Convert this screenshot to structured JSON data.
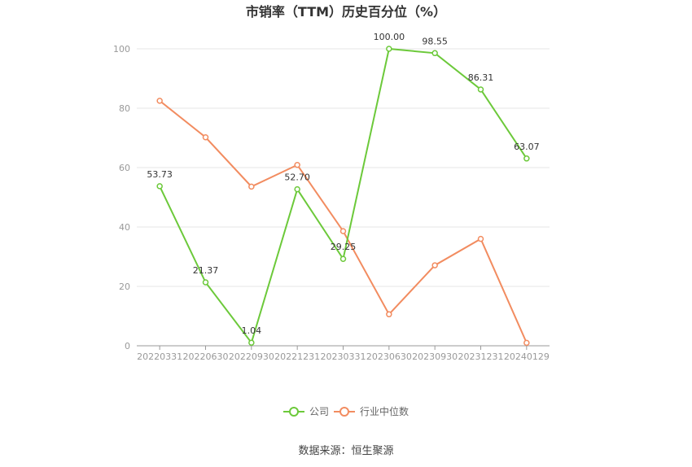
{
  "chart_data": {
    "type": "line",
    "title": "市销率（TTM）历史百分位（%）",
    "xlabel": "",
    "ylabel": "",
    "ylim": [
      0,
      100
    ],
    "yticks": [
      0,
      20,
      40,
      60,
      80,
      100
    ],
    "grid": true,
    "legend_position": "bottom",
    "categories": [
      "20220331",
      "20220630",
      "20220930",
      "20221231",
      "20230331",
      "20230630",
      "20230930",
      "20231231",
      "20240129"
    ],
    "series": [
      {
        "name": "公司",
        "color": "#6cc93a",
        "values": [
          53.73,
          21.37,
          1.04,
          52.7,
          29.25,
          100.0,
          98.55,
          86.31,
          63.07
        ],
        "labels": [
          "53.73",
          "21.37",
          "1.04",
          "52.70",
          "29.25",
          "100.00",
          "98.55",
          "86.31",
          "63.07"
        ]
      },
      {
        "name": "行业中位数",
        "color": "#f28c60",
        "values": [
          82.5,
          70.2,
          53.6,
          60.9,
          38.6,
          10.6,
          27.1,
          36.0,
          1.0
        ]
      }
    ]
  },
  "source": "数据来源：恒生聚源"
}
